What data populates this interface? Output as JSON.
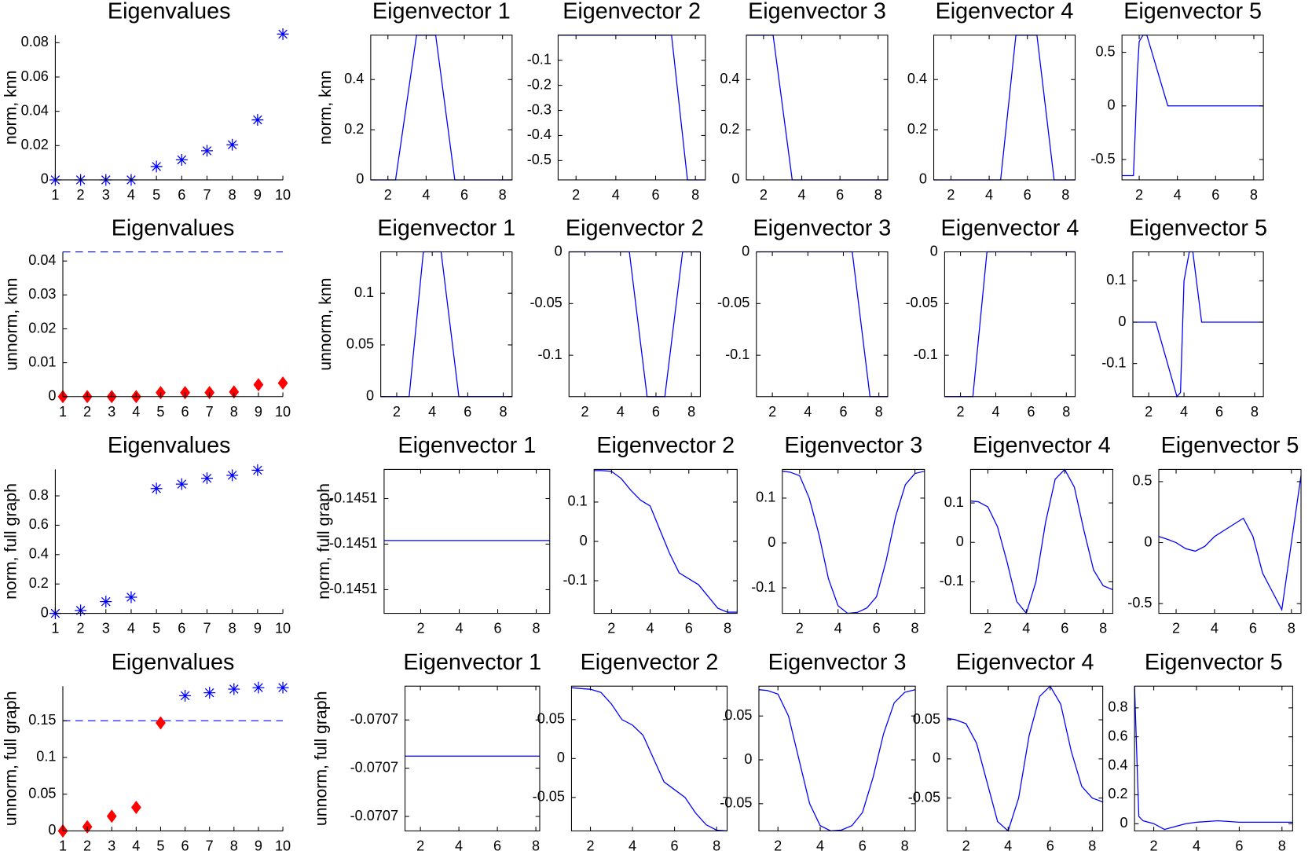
{
  "chart_data": [
    {
      "type": "scatter",
      "title": "Eigenvalues",
      "ylabel": "norm, knn",
      "xlim": [
        1,
        10
      ],
      "xticks": [
        1,
        2,
        3,
        4,
        5,
        6,
        7,
        8,
        9,
        10
      ],
      "ylim": [
        0,
        0.0844
      ],
      "yticks": [
        0,
        0.02,
        0.04,
        0.06,
        0.08
      ],
      "series": [
        {
          "marker": "asterisk",
          "color": "#0000ff",
          "x": [
            1,
            2,
            3,
            4,
            5,
            6,
            7,
            8,
            9,
            10
          ],
          "values": [
            0,
            0,
            0,
            0,
            0.0078,
            0.0117,
            0.017,
            0.0205,
            0.035,
            0.085
          ]
        }
      ]
    },
    {
      "type": "line",
      "title": "Eigenvector 1",
      "ylabel": "norm, knn",
      "color": "#0000ff",
      "xlim": [
        1.1,
        8.5
      ],
      "xticks": [
        2,
        4,
        6,
        8
      ],
      "ylim": [
        0,
        0.577
      ],
      "yticks": [
        0,
        0.2,
        0.4
      ],
      "x": [
        1.1,
        2.4,
        3.5,
        4.5,
        5.5,
        8.5
      ],
      "values": [
        0,
        0,
        0.577,
        0.577,
        0,
        0
      ]
    },
    {
      "type": "line",
      "title": "Eigenvector 2",
      "color": "#0000ff",
      "xlim": [
        1.1,
        8.5
      ],
      "xticks": [
        2,
        4,
        6,
        8
      ],
      "ylim": [
        -0.577,
        0
      ],
      "yticks": [
        -0.5,
        -0.4,
        -0.3,
        -0.2,
        -0.1
      ],
      "x": [
        1.1,
        6.8,
        7.6,
        8.5
      ],
      "values": [
        0,
        0,
        -0.577,
        -0.577
      ]
    },
    {
      "type": "line",
      "title": "Eigenvector 3",
      "color": "#0000ff",
      "xlim": [
        1.1,
        8.5
      ],
      "xticks": [
        2,
        4,
        6,
        8
      ],
      "ylim": [
        0,
        0.577
      ],
      "yticks": [
        0,
        0.2,
        0.4
      ],
      "x": [
        1.1,
        2.5,
        3.5,
        8.5
      ],
      "values": [
        0.577,
        0.577,
        0,
        0
      ]
    },
    {
      "type": "line",
      "title": "Eigenvector 4",
      "color": "#0000ff",
      "xlim": [
        1.1,
        8.5
      ],
      "xticks": [
        2,
        4,
        6,
        8
      ],
      "ylim": [
        0,
        0.577
      ],
      "yticks": [
        0,
        0.2,
        0.4
      ],
      "x": [
        1.1,
        4.6,
        5.4,
        6.5,
        7.4,
        8.5
      ],
      "values": [
        0,
        0,
        0.577,
        0.577,
        0,
        0
      ]
    },
    {
      "type": "line",
      "title": "Eigenvector 5",
      "color": "#0000ff",
      "xlim": [
        1.1,
        8.5
      ],
      "xticks": [
        2,
        4,
        6,
        8
      ],
      "ylim": [
        -0.69,
        0.66
      ],
      "yticks": [
        -0.5,
        0,
        0.5
      ],
      "x": [
        1.1,
        1.7,
        1.8,
        1.9,
        2.0,
        2.2,
        2.4,
        3.5,
        8.5
      ],
      "values": [
        -0.65,
        -0.65,
        -0.2,
        0.3,
        0.6,
        0.66,
        0.66,
        0,
        0
      ]
    },
    {
      "type": "scatter",
      "title": "Eigenvalues",
      "ylabel": "unnorm, knn",
      "xlim": [
        1,
        10
      ],
      "xticks": [
        1,
        2,
        3,
        4,
        5,
        6,
        7,
        8,
        9,
        10
      ],
      "ylim": [
        0,
        0.0427
      ],
      "yticks": [
        0,
        0.01,
        0.02,
        0.03,
        0.04
      ],
      "reference_line": 0.0427,
      "series": [
        {
          "marker": "diamond",
          "color": "#ff0000",
          "x": [
            1,
            2,
            3,
            4,
            5,
            6,
            7,
            8,
            9,
            10
          ],
          "values": [
            0,
            0,
            0,
            0,
            0.0012,
            0.0012,
            0.0012,
            0.0014,
            0.0035,
            0.004
          ]
        }
      ]
    },
    {
      "type": "line",
      "title": "Eigenvector 1",
      "ylabel": "unnorm, knn",
      "color": "#0000ff",
      "xlim": [
        1.1,
        8.5
      ],
      "xticks": [
        2,
        4,
        6,
        8
      ],
      "ylim": [
        0,
        0.14
      ],
      "yticks": [
        0,
        0.05,
        0.1
      ],
      "x": [
        1.1,
        2.7,
        3.5,
        4.5,
        5.5,
        8.5
      ],
      "values": [
        0,
        0,
        0.14,
        0.14,
        0,
        0
      ]
    },
    {
      "type": "line",
      "title": "Eigenvector 2",
      "color": "#0000ff",
      "xlim": [
        1.1,
        8.5
      ],
      "xticks": [
        2,
        4,
        6,
        8
      ],
      "ylim": [
        -0.14,
        0
      ],
      "yticks": [
        -0.1,
        -0.05,
        0
      ],
      "x": [
        1.1,
        4.5,
        5.5,
        6.5,
        7.5,
        8.5
      ],
      "values": [
        0,
        0,
        -0.14,
        -0.14,
        0,
        0
      ]
    },
    {
      "type": "line",
      "title": "Eigenvector 3",
      "color": "#0000ff",
      "xlim": [
        1.1,
        8.5
      ],
      "xticks": [
        2,
        4,
        6,
        8
      ],
      "ylim": [
        -0.14,
        0
      ],
      "yticks": [
        -0.1,
        -0.05,
        0
      ],
      "x": [
        1.1,
        6.5,
        7.5,
        8.5
      ],
      "values": [
        0,
        0,
        -0.14,
        -0.14
      ]
    },
    {
      "type": "line",
      "title": "Eigenvector 4",
      "color": "#0000ff",
      "xlim": [
        1.1,
        8.5
      ],
      "xticks": [
        2,
        4,
        6,
        8
      ],
      "ylim": [
        -0.14,
        0
      ],
      "yticks": [
        -0.1,
        -0.05,
        0
      ],
      "x": [
        1.1,
        2.7,
        3.5,
        8.5
      ],
      "values": [
        -0.14,
        -0.14,
        0,
        0
      ]
    },
    {
      "type": "line",
      "title": "Eigenvector 5",
      "color": "#0000ff",
      "xlim": [
        1.1,
        8.5
      ],
      "xticks": [
        2,
        4,
        6,
        8
      ],
      "ylim": [
        -0.18,
        0.17
      ],
      "yticks": [
        -0.1,
        0,
        0.1
      ],
      "x": [
        1.1,
        2.4,
        3.6,
        3.8,
        4.0,
        4.3,
        4.5,
        5.0,
        8.5
      ],
      "values": [
        0,
        0,
        -0.18,
        -0.17,
        0.1,
        0.17,
        0.17,
        0,
        0
      ]
    },
    {
      "type": "scatter",
      "title": "Eigenvalues",
      "ylabel": "norm, full graph",
      "xlim": [
        1,
        10
      ],
      "xticks": [
        1,
        2,
        3,
        4,
        5,
        6,
        7,
        8,
        9,
        10
      ],
      "ylim": [
        0,
        0.98
      ],
      "yticks": [
        0,
        0.2,
        0.4,
        0.6,
        0.8
      ],
      "series": [
        {
          "marker": "asterisk",
          "color": "#0000ff",
          "x": [
            1,
            2,
            3,
            4,
            5,
            6,
            7,
            8,
            9
          ],
          "values": [
            0,
            0.02,
            0.08,
            0.11,
            0.85,
            0.88,
            0.92,
            0.94,
            0.975
          ]
        }
      ]
    },
    {
      "type": "line",
      "title": "Eigenvector 1",
      "ylabel": "norm, full graph",
      "color": "#0000ff",
      "xlim": [
        0.1,
        8.7
      ],
      "xticks": [
        2,
        4,
        6,
        8
      ],
      "ylim": [
        -0.145176,
        -0.145018
      ],
      "yticks": [
        {
          "value": -0.14515,
          "label": "-0.1451"
        },
        -0.1451,
        {
          "value": -0.14505,
          "label": "-0.1451"
        }
      ],
      "x": [
        0.1,
        8.7
      ],
      "values": [
        -0.145096,
        -0.145096
      ]
    },
    {
      "type": "line",
      "title": "Eigenvector 2",
      "color": "#0000ff",
      "xlim": [
        1.1,
        8.5
      ],
      "xticks": [
        2,
        4,
        6,
        8
      ],
      "ylim": [
        -0.183,
        0.183
      ],
      "yticks": [
        -0.1,
        0,
        0.1
      ],
      "x": [
        1.1,
        1.5,
        2,
        2.5,
        3,
        3.5,
        4,
        4.5,
        5,
        5.5,
        6,
        6.5,
        7,
        7.5,
        8,
        8.5
      ],
      "values": [
        0.18,
        0.18,
        0.178,
        0.16,
        0.13,
        0.105,
        0.09,
        0.03,
        -0.03,
        -0.08,
        -0.095,
        -0.11,
        -0.14,
        -0.17,
        -0.18,
        -0.18
      ]
    },
    {
      "type": "line",
      "title": "Eigenvector 3",
      "color": "#0000ff",
      "xlim": [
        1.1,
        8.5
      ],
      "xticks": [
        2,
        4,
        6,
        8
      ],
      "ylim": [
        -0.157,
        0.164
      ],
      "yticks": [
        -0.1,
        0,
        0.1
      ],
      "x": [
        1.1,
        1.5,
        2,
        2.5,
        3,
        3.5,
        4,
        4.5,
        5,
        5.5,
        6,
        6.5,
        7,
        7.5,
        8,
        8.5
      ],
      "values": [
        0.16,
        0.158,
        0.15,
        0.1,
        0.02,
        -0.08,
        -0.14,
        -0.157,
        -0.155,
        -0.145,
        -0.12,
        -0.04,
        0.06,
        0.13,
        0.155,
        0.16
      ]
    },
    {
      "type": "line",
      "title": "Eigenvector 4",
      "color": "#0000ff",
      "xlim": [
        1.1,
        8.5
      ],
      "xticks": [
        2,
        4,
        6,
        8
      ],
      "ylim": [
        -0.18,
        0.185
      ],
      "yticks": [
        -0.1,
        0,
        0.1
      ],
      "x": [
        1.1,
        1.5,
        2,
        2.5,
        3,
        3.5,
        4,
        4.5,
        5,
        5.5,
        6,
        6.5,
        7,
        7.5,
        8,
        8.5
      ],
      "values": [
        0.105,
        0.103,
        0.09,
        0.04,
        -0.05,
        -0.15,
        -0.18,
        -0.1,
        0.05,
        0.16,
        0.185,
        0.14,
        0.03,
        -0.07,
        -0.11,
        -0.12
      ]
    },
    {
      "type": "line",
      "title": "Eigenvector 5",
      "color": "#0000ff",
      "xlim": [
        1.1,
        8.5
      ],
      "xticks": [
        2,
        4,
        6,
        8
      ],
      "ylim": [
        -0.58,
        0.6
      ],
      "yticks": [
        -0.5,
        0,
        0.5
      ],
      "x": [
        1.1,
        1.5,
        2,
        2.5,
        3,
        3.5,
        4,
        4.5,
        5,
        5.5,
        6,
        6.5,
        7,
        7.5,
        8,
        8.5
      ],
      "values": [
        0.05,
        0.03,
        0,
        -0.05,
        -0.07,
        -0.03,
        0.05,
        0.1,
        0.15,
        0.2,
        0.05,
        -0.25,
        -0.4,
        -0.55,
        0,
        0.55
      ]
    },
    {
      "type": "scatter",
      "title": "Eigenvalues",
      "ylabel": "unnorm, full graph",
      "xlim": [
        1,
        10
      ],
      "xticks": [
        1,
        2,
        3,
        4,
        5,
        6,
        7,
        8,
        9,
        10
      ],
      "ylim": [
        0,
        0.197
      ],
      "yticks": [
        0,
        0.05,
        0.1,
        0.15
      ],
      "reference_line": 0.15,
      "series": [
        {
          "marker": "asterisk",
          "color": "#0000ff",
          "x": [
            6,
            7,
            8,
            9,
            10
          ],
          "values": [
            0.184,
            0.188,
            0.193,
            0.195,
            0.195
          ]
        },
        {
          "marker": "diamond",
          "color": "#ff0000",
          "x": [
            1,
            2,
            3,
            4,
            5
          ],
          "values": [
            0,
            0.0056,
            0.02,
            0.032,
            0.147
          ]
        }
      ]
    },
    {
      "type": "line",
      "title": "Eigenvector 1",
      "ylabel": "unnorm, full graph",
      "color": "#0000ff",
      "xlim": [
        1.2,
        8.2
      ],
      "xticks": [
        2,
        4,
        6,
        8
      ],
      "ylim": [
        -0.070726,
        -0.070666
      ],
      "yticks": [
        {
          "value": -0.07072,
          "label": "-0.0707"
        },
        -0.0707,
        {
          "value": -0.07068,
          "label": "-0.0707"
        }
      ],
      "x": [
        1.2,
        8.2
      ],
      "values": [
        -0.070695,
        -0.070695
      ]
    },
    {
      "type": "line",
      "title": "Eigenvector 2",
      "color": "#0000ff",
      "xlim": [
        1.1,
        8.5
      ],
      "xticks": [
        2,
        4,
        6,
        8
      ],
      "ylim": [
        -0.093,
        0.093
      ],
      "yticks": [
        -0.05,
        0,
        0.05
      ],
      "x": [
        1.1,
        1.5,
        2,
        2.5,
        3,
        3.5,
        4,
        4.5,
        5,
        5.5,
        6,
        6.5,
        7,
        7.5,
        8,
        8.5
      ],
      "values": [
        0.091,
        0.09,
        0.089,
        0.085,
        0.07,
        0.05,
        0.043,
        0.03,
        0,
        -0.03,
        -0.04,
        -0.05,
        -0.07,
        -0.085,
        -0.092,
        -0.093
      ]
    },
    {
      "type": "line",
      "title": "Eigenvector 3",
      "color": "#0000ff",
      "xlim": [
        1.1,
        8.5
      ],
      "xticks": [
        2,
        4,
        6,
        8
      ],
      "ylim": [
        -0.081,
        0.084
      ],
      "yticks": [
        -0.05,
        0,
        0.05
      ],
      "x": [
        1.1,
        1.5,
        2,
        2.5,
        3,
        3.5,
        4,
        4.5,
        5,
        5.5,
        6,
        6.5,
        7,
        7.5,
        8,
        8.5
      ],
      "values": [
        0.08,
        0.079,
        0.075,
        0.05,
        0,
        -0.05,
        -0.075,
        -0.081,
        -0.08,
        -0.075,
        -0.06,
        -0.02,
        0.03,
        0.065,
        0.077,
        0.08
      ]
    },
    {
      "type": "line",
      "title": "Eigenvector 4",
      "color": "#0000ff",
      "xlim": [
        1.1,
        8.5
      ],
      "xticks": [
        2,
        4,
        6,
        8
      ],
      "ylim": [
        -0.092,
        0.093
      ],
      "yticks": [
        -0.05,
        0,
        0.05
      ],
      "x": [
        1.1,
        1.5,
        2,
        2.5,
        3,
        3.5,
        4,
        4.5,
        5,
        5.5,
        6,
        6.5,
        7,
        7.5,
        8,
        8.5
      ],
      "values": [
        0.052,
        0.05,
        0.045,
        0.02,
        -0.03,
        -0.08,
        -0.092,
        -0.05,
        0.03,
        0.08,
        0.093,
        0.07,
        0.01,
        -0.035,
        -0.05,
        -0.055
      ]
    },
    {
      "type": "line",
      "title": "Eigenvector 5",
      "color": "#0000ff",
      "xlim": [
        1.1,
        8.5
      ],
      "xticks": [
        2,
        4,
        6,
        8
      ],
      "ylim": [
        -0.05,
        0.95
      ],
      "yticks": [
        0,
        0.2,
        0.4,
        0.6,
        0.8
      ],
      "x": [
        1.1,
        1.3,
        1.5,
        2,
        2.5,
        3,
        3.5,
        4,
        4.5,
        5,
        6,
        7,
        8.5
      ],
      "values": [
        0.95,
        0.05,
        0.02,
        0,
        -0.04,
        -0.02,
        0,
        0.01,
        0.015,
        0.02,
        0.01,
        0.01,
        0.01
      ]
    }
  ]
}
